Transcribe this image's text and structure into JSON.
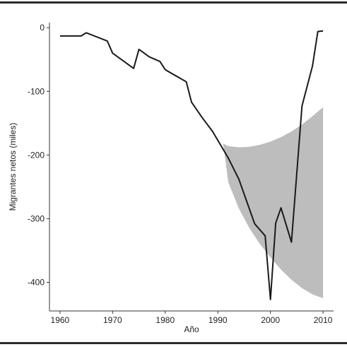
{
  "chart_data": {
    "type": "line",
    "title": "",
    "xlabel": "Año",
    "ylabel": "Migrantes netos (miles)",
    "xlim": [
      1958,
      2012
    ],
    "ylim": [
      -445,
      8
    ],
    "x_ticks": [
      {
        "value": 1960,
        "label": "1960"
      },
      {
        "value": 1970,
        "label": "1970"
      },
      {
        "value": 1980,
        "label": "1980"
      },
      {
        "value": 1990,
        "label": "1990"
      },
      {
        "value": 2000,
        "label": "2000"
      },
      {
        "value": 2010,
        "label": "2010"
      }
    ],
    "y_ticks": [
      {
        "value": 0,
        "label": "0"
      },
      {
        "value": -100,
        "label": "-100"
      },
      {
        "value": -200,
        "label": "-200"
      },
      {
        "value": -300,
        "label": "-300"
      },
      {
        "value": -400,
        "label": "-400"
      }
    ],
    "grid": false,
    "legend": "none",
    "series": [
      {
        "x": [
          1960,
          1964,
          1965,
          1969,
          1970,
          1974,
          1975,
          1977,
          1979,
          1980,
          1984,
          1985,
          1987,
          1989,
          1992,
          1994,
          1997,
          1999,
          2000,
          2001,
          2002,
          2004,
          2006,
          2008,
          2009,
          2010
        ],
        "values": [
          -13,
          -13,
          -8,
          -21,
          -40,
          -64,
          -34,
          -46,
          -53,
          -66,
          -85,
          -117,
          -141,
          -163,
          -205,
          -238,
          -308,
          -327,
          -427,
          -307,
          -283,
          -337,
          -123,
          -60,
          -6,
          -5
        ],
        "color": "#1a1a1a"
      }
    ],
    "band": {
      "color": "#bdbdbd",
      "x": [
        1991,
        1992,
        1994,
        1996,
        1998,
        2000,
        2002,
        2004,
        2006,
        2008,
        2010
      ],
      "upper": [
        -182,
        -186,
        -188,
        -187,
        -184,
        -179,
        -172,
        -163,
        -152,
        -139,
        -125
      ],
      "lower": [
        -182,
        -243,
        -284,
        -315,
        -340,
        -361,
        -380,
        -396,
        -409,
        -419,
        -425
      ]
    }
  }
}
